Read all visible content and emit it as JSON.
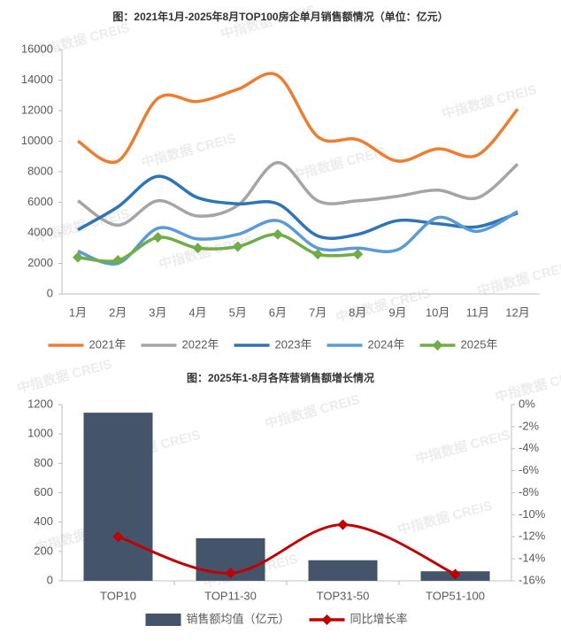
{
  "watermark": "中指数据 CREIS",
  "chart_data": [
    {
      "type": "line",
      "title": "图：2021年1月-2025年8月TOP100房企单月销售额情况（单位：亿元）",
      "categories": [
        "1月",
        "2月",
        "3月",
        "4月",
        "5月",
        "6月",
        "7月",
        "8月",
        "9月",
        "10月",
        "11月",
        "12月"
      ],
      "ylim": [
        0,
        16000
      ],
      "yticks": [
        0,
        2000,
        4000,
        6000,
        8000,
        10000,
        12000,
        14000,
        16000
      ],
      "grid": false,
      "legend": "bottom",
      "series": [
        {
          "name": "2021年",
          "color": "#ED7D31",
          "values": [
            10000,
            8700,
            12800,
            12600,
            13400,
            14300,
            10300,
            10100,
            8700,
            9500,
            9100,
            12100
          ]
        },
        {
          "name": "2022年",
          "color": "#A5A5A5",
          "values": [
            6100,
            4500,
            6100,
            5100,
            5800,
            8600,
            6100,
            6100,
            6400,
            6800,
            6300,
            8500
          ]
        },
        {
          "name": "2023年",
          "color": "#2E75B6",
          "values": [
            4200,
            5700,
            7700,
            6300,
            5900,
            5900,
            3800,
            3900,
            4800,
            4600,
            4400,
            5300
          ]
        },
        {
          "name": "2024年",
          "color": "#5B9BD5",
          "values": [
            2800,
            2000,
            4300,
            3600,
            3900,
            4800,
            3000,
            3000,
            2900,
            5000,
            4100,
            5400
          ]
        },
        {
          "name": "2025年",
          "color": "#70AD47",
          "marker": "diamond",
          "values": [
            2400,
            2200,
            3700,
            3000,
            3100,
            3900,
            2600,
            2600,
            null,
            null,
            null,
            null
          ]
        }
      ]
    },
    {
      "type": "bar_line",
      "title": "图：2025年1-8月各阵营销售额增长情况",
      "categories": [
        "TOP10",
        "TOP11-30",
        "TOP31-50",
        "TOP51-100"
      ],
      "ylim": [
        0,
        1200
      ],
      "yticks": [
        0,
        200,
        400,
        600,
        800,
        1000,
        1200
      ],
      "y2lim": [
        -16,
        0
      ],
      "y2ticks": [
        {
          "value": 0,
          "label": "0%"
        },
        {
          "value": -2,
          "label": "-2%"
        },
        {
          "value": -4,
          "label": "-4%"
        },
        {
          "value": -6,
          "label": "-6%"
        },
        {
          "value": -8,
          "label": "-8%"
        },
        {
          "value": -10,
          "label": "-10%"
        },
        {
          "value": -12,
          "label": "-12%"
        },
        {
          "value": -14,
          "label": "-14%"
        },
        {
          "value": -16,
          "label": "-16%"
        }
      ],
      "grid": false,
      "legend": "bottom",
      "series": [
        {
          "name": "销售额均值（亿元）",
          "color": "#44546A",
          "kind": "bar",
          "values": [
            1145,
            290,
            140,
            65
          ]
        },
        {
          "name": "同比增长率",
          "color": "#C00000",
          "kind": "line",
          "marker": "diamond",
          "axis": "y2",
          "values": [
            -12,
            -15.3,
            -10.9,
            -15.4
          ]
        }
      ]
    }
  ]
}
